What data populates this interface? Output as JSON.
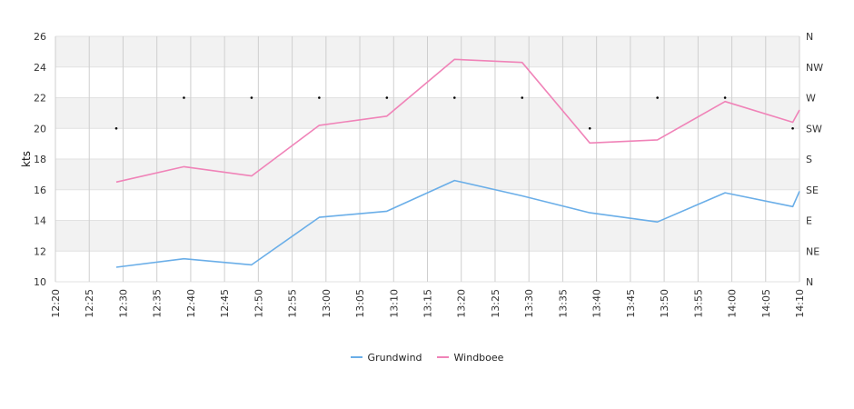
{
  "chart_data": {
    "type": "line",
    "title": "",
    "ylabel": "kts",
    "ylim": [
      10,
      26
    ],
    "y_ticks": [
      "10",
      "12",
      "14",
      "16",
      "18",
      "20",
      "22",
      "24",
      "26"
    ],
    "x_ticks": [
      "12:20",
      "12:25",
      "12:30",
      "12:35",
      "12:40",
      "12:45",
      "12:50",
      "12:55",
      "13:00",
      "13:05",
      "13:10",
      "13:15",
      "13:20",
      "13:25",
      "13:30",
      "13:35",
      "13:40",
      "13:45",
      "13:50",
      "13:55",
      "14:00",
      "14:05",
      "14:10"
    ],
    "xlim": [
      "12:20",
      "14:10"
    ],
    "right_axis_labels": [
      "N",
      "NE",
      "E",
      "SE",
      "S",
      "SW",
      "W",
      "NW",
      "N"
    ],
    "grid": true,
    "legend_position": "bottom-center",
    "series": [
      {
        "name": "Grundwind",
        "color": "#6aaee8",
        "x": [
          "12:29",
          "12:39",
          "12:49",
          "12:59",
          "13:09",
          "13:19",
          "13:29",
          "13:39",
          "13:49",
          "13:59",
          "14:09",
          "14:10"
        ],
        "values": [
          10.95,
          11.5,
          11.1,
          14.2,
          14.6,
          16.6,
          15.6,
          14.5,
          13.9,
          15.8,
          14.9,
          15.9
        ]
      },
      {
        "name": "Windboee",
        "color": "#f083b8",
        "x": [
          "12:29",
          "12:39",
          "12:49",
          "12:59",
          "13:09",
          "13:19",
          "13:29",
          "13:39",
          "13:49",
          "13:59",
          "14:09",
          "14:10"
        ],
        "values": [
          16.5,
          17.5,
          16.9,
          20.2,
          20.8,
          24.5,
          24.3,
          19.05,
          19.25,
          21.75,
          20.4,
          21.2
        ]
      }
    ],
    "direction_points": {
      "x": [
        "12:29",
        "12:39",
        "12:49",
        "12:59",
        "13:09",
        "13:19",
        "13:29",
        "13:39",
        "13:49",
        "13:59",
        "14:09"
      ],
      "direction": [
        "SW",
        "W",
        "W",
        "W",
        "W",
        "W",
        "W",
        "SW",
        "W",
        "W",
        "SW"
      ]
    }
  },
  "legend": {
    "items": [
      {
        "label": "Grundwind",
        "color": "#6aaee8"
      },
      {
        "label": "Windboee",
        "color": "#f083b8"
      }
    ]
  }
}
